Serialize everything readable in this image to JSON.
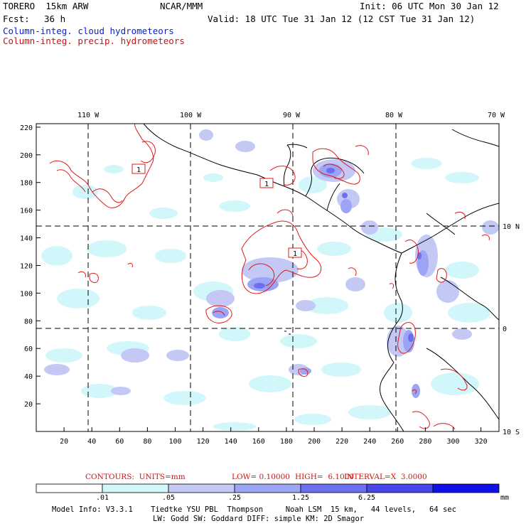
{
  "header": {
    "model": "TORERO  15km ARW",
    "org": "NCAR/MMM",
    "init": "Init: 06 UTC Mon 30 Jan 12",
    "fcst_label": "Fcst:",
    "fcst_value": "36 h",
    "valid": "Valid: 18 UTC Tue 31 Jan 12 (12 CST Tue 31 Jan 12)",
    "field1": "Column-integ. cloud hydrometeors",
    "field2": "Column-integ. precip. hydrometeors"
  },
  "colors": {
    "field1": "#0a1fd0",
    "field2": "#d01010",
    "contour": "#e01818",
    "grid": "#000000",
    "coast": "#000000"
  },
  "axes": {
    "top_lon_labels": [
      "110 W",
      "100 W",
      "90 W",
      "80 W",
      "70 W"
    ],
    "right_lat_labels": [
      "10 N",
      "0",
      "10 S"
    ],
    "y_ticks": [
      "220",
      "200",
      "180",
      "160",
      "140",
      "120",
      "100",
      "80",
      "60",
      "40",
      "20"
    ],
    "x_ticks": [
      "20",
      "40",
      "60",
      "80",
      "100",
      "120",
      "140",
      "160",
      "180",
      "200",
      "220",
      "240",
      "260",
      "280",
      "300",
      "320"
    ]
  },
  "contour_labels": [
    "1",
    "1",
    "1"
  ],
  "contours_info": {
    "units": "CONTOURS:  UNITS=mm",
    "low": "LOW= 0.10000",
    "high": "HIGH=  6.1000",
    "interval": "INTERVAL=X  3.0000"
  },
  "colorbar": {
    "colors": [
      "#ffffff",
      "#d2f7fb",
      "#c3c8f5",
      "#9ba4f5",
      "#6d70ee",
      "#4646ea",
      "#1010e8"
    ],
    "labels": [
      ".01",
      ".05",
      ".25",
      "1.25",
      "6.25"
    ],
    "units": "mm"
  },
  "model_info": {
    "line1": "Model Info: V3.3.1    Tiedtke YSU PBL  Thompson     Noah LSM  15 km,   44 levels,   64 sec",
    "line2": "LW: Godd SW: Goddard DIFF: simple KM: 2D Smagor"
  }
}
